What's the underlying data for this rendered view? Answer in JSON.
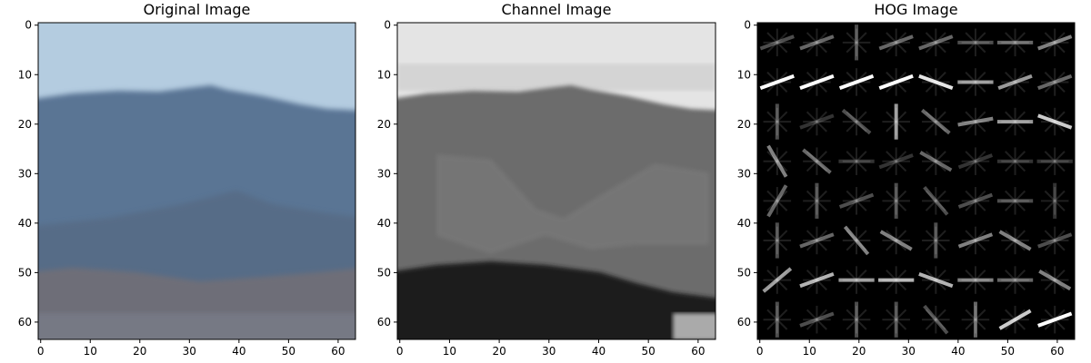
{
  "chart_data": [
    {
      "type": "heatmap",
      "title": "Original Image",
      "xlim": [
        0,
        64
      ],
      "ylim": [
        64,
        0
      ],
      "xticks": [
        0,
        10,
        20,
        30,
        40,
        50,
        60
      ],
      "yticks": [
        0,
        10,
        20,
        30,
        40,
        50,
        60
      ],
      "xtick_labels": [
        "0",
        "10",
        "20",
        "30",
        "40",
        "50",
        "60"
      ],
      "ytick_labels": [
        "0",
        "10",
        "20",
        "30",
        "40",
        "50",
        "60"
      ],
      "sky_color": "#b4cce0",
      "mountain_color": "#5a7494",
      "ground_color": "#6e6e78",
      "grid": false
    },
    {
      "type": "heatmap",
      "title": "Channel Image",
      "colormap": "gray",
      "xlim": [
        0,
        64
      ],
      "ylim": [
        64,
        0
      ],
      "xticks": [
        0,
        10,
        20,
        30,
        40,
        50,
        60
      ],
      "yticks": [
        0,
        10,
        20,
        30,
        40,
        50,
        60
      ],
      "xtick_labels": [
        "0",
        "10",
        "20",
        "30",
        "40",
        "50",
        "60"
      ],
      "ytick_labels": [
        "0",
        "10",
        "20",
        "30",
        "40",
        "50",
        "60"
      ],
      "sky_color": "#e4e4e4",
      "mountain_color": "#6c6c6c",
      "ground_color": "#1c1c1c",
      "grid": false
    },
    {
      "type": "heatmap",
      "title": "HOG Image",
      "colormap": "gray",
      "xlim": [
        0,
        64
      ],
      "ylim": [
        64,
        0
      ],
      "xticks": [
        0,
        10,
        20,
        30,
        40,
        50,
        60
      ],
      "yticks": [
        0,
        10,
        20,
        30,
        40,
        50,
        60
      ],
      "xtick_labels": [
        "0",
        "10",
        "20",
        "30",
        "40",
        "50",
        "60"
      ],
      "ytick_labels": [
        "0",
        "10",
        "20",
        "30",
        "40",
        "50",
        "60"
      ],
      "background_color": "#000000",
      "cells_per_side": 8,
      "cell_size": 8,
      "hog_cells": [
        [
          [
            20,
            0.3
          ],
          [
            20,
            0.4
          ],
          [
            90,
            0.3
          ],
          [
            20,
            0.4
          ],
          [
            20,
            0.4
          ],
          [
            0,
            0.3
          ],
          [
            0,
            0.4
          ],
          [
            20,
            0.5
          ]
        ],
        [
          [
            20,
            1.0
          ],
          [
            20,
            1.0
          ],
          [
            20,
            1.0
          ],
          [
            20,
            1.0
          ],
          [
            160,
            0.9
          ],
          [
            0,
            0.6
          ],
          [
            20,
            0.6
          ],
          [
            20,
            0.4
          ]
        ],
        [
          [
            90,
            0.3
          ],
          [
            20,
            0.2
          ],
          [
            140,
            0.3
          ],
          [
            90,
            0.6
          ],
          [
            140,
            0.4
          ],
          [
            10,
            0.5
          ],
          [
            0,
            0.6
          ],
          [
            160,
            0.8
          ]
        ],
        [
          [
            120,
            0.5
          ],
          [
            140,
            0.4
          ],
          [
            0,
            0.2
          ],
          [
            20,
            0.2
          ],
          [
            150,
            0.4
          ],
          [
            20,
            0.2
          ],
          [
            0,
            0.2
          ],
          [
            0,
            0.2
          ]
        ],
        [
          [
            60,
            0.4
          ],
          [
            90,
            0.3
          ],
          [
            20,
            0.3
          ],
          [
            90,
            0.3
          ],
          [
            130,
            0.3
          ],
          [
            20,
            0.3
          ],
          [
            0,
            0.3
          ],
          [
            90,
            0.2
          ]
        ],
        [
          [
            90,
            0.3
          ],
          [
            20,
            0.4
          ],
          [
            130,
            0.5
          ],
          [
            150,
            0.5
          ],
          [
            90,
            0.3
          ],
          [
            20,
            0.5
          ],
          [
            150,
            0.5
          ],
          [
            20,
            0.3
          ]
        ],
        [
          [
            40,
            0.6
          ],
          [
            20,
            0.7
          ],
          [
            0,
            0.6
          ],
          [
            0,
            0.7
          ],
          [
            160,
            0.7
          ],
          [
            0,
            0.5
          ],
          [
            0,
            0.4
          ],
          [
            150,
            0.5
          ]
        ],
        [
          [
            90,
            0.3
          ],
          [
            20,
            0.3
          ],
          [
            90,
            0.3
          ],
          [
            90,
            0.3
          ],
          [
            130,
            0.3
          ],
          [
            90,
            0.4
          ],
          [
            30,
            0.8
          ],
          [
            20,
            1.0
          ]
        ]
      ],
      "grid": false
    }
  ]
}
